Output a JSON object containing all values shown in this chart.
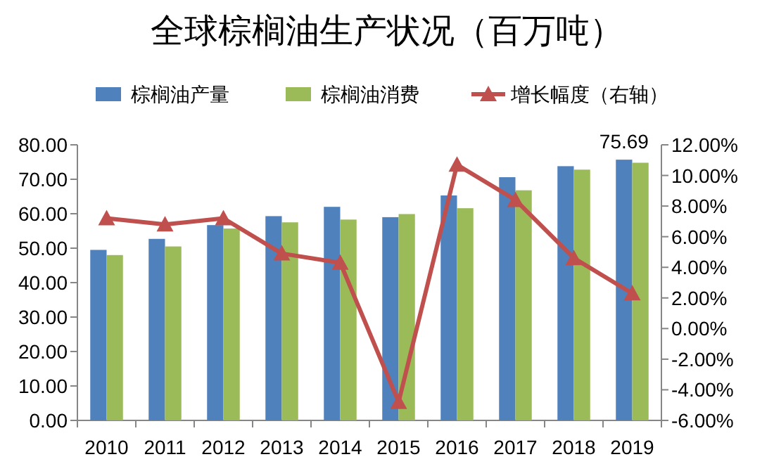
{
  "chart_data": {
    "type": "bar",
    "title": "全球棕榈油生产状况（百万吨）",
    "categories": [
      "2010",
      "2011",
      "2012",
      "2013",
      "2014",
      "2015",
      "2016",
      "2017",
      "2018",
      "2019"
    ],
    "series": [
      {
        "name": "棕榈油产量",
        "color": "#4f81bd",
        "values": [
          49.5,
          52.7,
          56.7,
          59.3,
          62.0,
          59.0,
          65.3,
          70.6,
          73.8,
          75.69
        ],
        "value_labels": [
          null,
          null,
          null,
          null,
          null,
          null,
          null,
          null,
          null,
          "75.69"
        ]
      },
      {
        "name": "棕榈油消费",
        "color": "#9bbb59",
        "values": [
          48.0,
          50.5,
          55.7,
          57.5,
          58.3,
          59.9,
          61.6,
          66.8,
          72.8,
          74.8
        ]
      },
      {
        "name": "增长幅度（右轴）",
        "color": "#c0504d",
        "type": "line",
        "axis": "y2",
        "marker": "triangle",
        "values": [
          7.2,
          6.8,
          7.2,
          4.9,
          4.3,
          -4.8,
          10.7,
          8.4,
          4.6,
          2.3
        ]
      }
    ],
    "ylim": [
      0,
      80
    ],
    "yticks": [
      {
        "value": 0,
        "label": "0.00"
      },
      {
        "value": 10,
        "label": "10.00"
      },
      {
        "value": 20,
        "label": "20.00"
      },
      {
        "value": 30,
        "label": "30.00"
      },
      {
        "value": 40,
        "label": "40.00"
      },
      {
        "value": 50,
        "label": "50.00"
      },
      {
        "value": 60,
        "label": "60.00"
      },
      {
        "value": 70,
        "label": "70.00"
      },
      {
        "value": 80,
        "label": "80.00"
      }
    ],
    "y2lim": [
      -6,
      12
    ],
    "y2ticks": [
      {
        "value": -6,
        "label": "-6.00%"
      },
      {
        "value": -4,
        "label": "-4.00%"
      },
      {
        "value": -2,
        "label": "-2.00%"
      },
      {
        "value": 0,
        "label": "0.00%"
      },
      {
        "value": 2,
        "label": "2.00%"
      },
      {
        "value": 4,
        "label": "4.00%"
      },
      {
        "value": 6,
        "label": "6.00%"
      },
      {
        "value": 8,
        "label": "8.00%"
      },
      {
        "value": 10,
        "label": "10.00%"
      },
      {
        "value": 12,
        "label": "12.00%"
      }
    ],
    "legend": "top",
    "grid": false
  }
}
